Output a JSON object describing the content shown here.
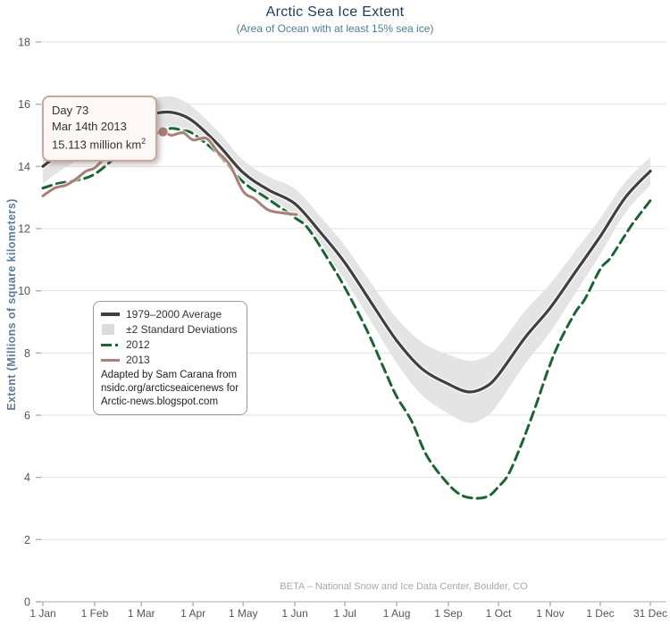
{
  "header": {
    "title": "Arctic Sea Ice Extent",
    "subtitle": "(Area of Ocean with at least 15% sea ice)"
  },
  "y_axis_title": "Extent (Millions of square kilometers)",
  "footer_note": "BETA – National Snow and Ice Data Center, Boulder, CO",
  "tooltip": {
    "day_label": "Day 73",
    "date_label": "Mar 14th 2013",
    "value_text": "15.113 million km",
    "value_sup": "2"
  },
  "legend": {
    "items": [
      {
        "label": "1979–2000 Average",
        "type": "solid-line",
        "color": "#3f3f3f"
      },
      {
        "label": "±2 Standard Deviations",
        "type": "band",
        "color": "#e3e3e3"
      },
      {
        "label": "2012",
        "type": "dash-dot-line",
        "color": "#1b6433"
      },
      {
        "label": "2013",
        "type": "solid-line",
        "color": "#a97f77"
      }
    ],
    "attribution": [
      "Adapted by Sam Carana from",
      "nsidc.org/arcticseaicenews for",
      "Arctic-news.blogspot.com"
    ]
  },
  "colors": {
    "title": "#1c3c5e",
    "subtitle": "#4d7f90",
    "y_axis_title": "#5b7b9d",
    "grid": "#e2e2e2",
    "axis_line": "#bdbdbd",
    "tick_text": "#555555",
    "band": "#e4e4e4",
    "average_line": "#3f3f3f",
    "line_2012": "#1b6433",
    "line_2013": "#a97f77",
    "tooltip_border": "#c9a69e",
    "tooltip_bg": "#fdf7f6"
  },
  "chart_data": {
    "type": "line",
    "title": "Arctic Sea Ice Extent",
    "subtitle": "(Area of Ocean with at least 15% sea ice)",
    "xlabel": "",
    "ylabel": "Extent (Millions of square kilometers)",
    "ylim": [
      0,
      18
    ],
    "y_ticks": [
      0,
      2,
      4,
      6,
      8,
      10,
      12,
      14,
      16,
      18
    ],
    "x_ticks": {
      "days": [
        1,
        32,
        60,
        91,
        121,
        152,
        182,
        213,
        244,
        274,
        305,
        335,
        365
      ],
      "labels": [
        "1 Jan",
        "1 Feb",
        "1 Mar",
        "1 Apr",
        "1 May",
        "1 Jun",
        "1 Jul",
        "1 Aug",
        "1 Sep",
        "1 Oct",
        "1 Nov",
        "1 Dec",
        "31 Dec"
      ]
    },
    "x_range_days": [
      1,
      365
    ],
    "grid": "horizontal",
    "legend_position": "inside-left",
    "band": {
      "name": "±2 Standard Deviations",
      "color": "#e4e4e4",
      "basis": "1979-2000 Average plus/minus offset listed as third element of each average point"
    },
    "series": [
      {
        "name": "1979–2000 Average",
        "color": "#3f3f3f",
        "style": "solid",
        "width": 3.2,
        "points_day_value_sd": [
          [
            1,
            14.0,
            0.55
          ],
          [
            14,
            14.5,
            0.55
          ],
          [
            32,
            15.0,
            0.52
          ],
          [
            46,
            15.3,
            0.5
          ],
          [
            60,
            15.55,
            0.5
          ],
          [
            70,
            15.72,
            0.5
          ],
          [
            80,
            15.72,
            0.5
          ],
          [
            91,
            15.45,
            0.45
          ],
          [
            106,
            14.7,
            0.42
          ],
          [
            121,
            13.8,
            0.4
          ],
          [
            136,
            13.25,
            0.42
          ],
          [
            152,
            12.8,
            0.48
          ],
          [
            167,
            11.9,
            0.5
          ],
          [
            182,
            10.9,
            0.55
          ],
          [
            198,
            9.6,
            0.62
          ],
          [
            213,
            8.4,
            0.72
          ],
          [
            228,
            7.5,
            0.85
          ],
          [
            244,
            7.0,
            0.95
          ],
          [
            256,
            6.75,
            1.0
          ],
          [
            266,
            6.9,
            0.97
          ],
          [
            274,
            7.3,
            0.92
          ],
          [
            290,
            8.5,
            0.85
          ],
          [
            305,
            9.45,
            0.78
          ],
          [
            320,
            10.6,
            0.68
          ],
          [
            335,
            11.75,
            0.58
          ],
          [
            350,
            13.0,
            0.5
          ],
          [
            365,
            13.85,
            0.45
          ]
        ]
      },
      {
        "name": "2012",
        "color": "#1b6433",
        "style": "dashed",
        "width": 3,
        "dash": "10 6",
        "points_day_value": [
          [
            1,
            13.3
          ],
          [
            10,
            13.45
          ],
          [
            21,
            13.55
          ],
          [
            32,
            13.75
          ],
          [
            46,
            14.35
          ],
          [
            60,
            14.9
          ],
          [
            70,
            15.1
          ],
          [
            78,
            15.22
          ],
          [
            85,
            15.15
          ],
          [
            91,
            15.05
          ],
          [
            106,
            14.4
          ],
          [
            121,
            13.5
          ],
          [
            136,
            12.95
          ],
          [
            152,
            12.35
          ],
          [
            160,
            12.0
          ],
          [
            172,
            11.0
          ],
          [
            182,
            10.1
          ],
          [
            195,
            8.75
          ],
          [
            207,
            7.3
          ],
          [
            213,
            6.6
          ],
          [
            222,
            5.8
          ],
          [
            231,
            4.7
          ],
          [
            242,
            3.9
          ],
          [
            251,
            3.45
          ],
          [
            260,
            3.33
          ],
          [
            268,
            3.4
          ],
          [
            274,
            3.7
          ],
          [
            280,
            4.1
          ],
          [
            288,
            5.1
          ],
          [
            296,
            6.25
          ],
          [
            304,
            7.5
          ],
          [
            311,
            8.4
          ],
          [
            320,
            9.3
          ],
          [
            326,
            9.75
          ],
          [
            335,
            10.7
          ],
          [
            341,
            11.05
          ],
          [
            350,
            11.8
          ],
          [
            355,
            12.2
          ],
          [
            365,
            12.9
          ]
        ]
      },
      {
        "name": "2013",
        "color": "#a97f77",
        "style": "solid",
        "width": 3,
        "points_day_value": [
          [
            1,
            13.05
          ],
          [
            8,
            13.3
          ],
          [
            15,
            13.4
          ],
          [
            21,
            13.6
          ],
          [
            27,
            13.85
          ],
          [
            32,
            13.95
          ],
          [
            39,
            14.3
          ],
          [
            46,
            14.45
          ],
          [
            53,
            14.6
          ],
          [
            60,
            14.85
          ],
          [
            66,
            15.0
          ],
          [
            73,
            15.113
          ],
          [
            78,
            15.0
          ],
          [
            85,
            15.08
          ],
          [
            91,
            14.85
          ],
          [
            99,
            14.9
          ],
          [
            106,
            14.45
          ],
          [
            113,
            14.05
          ],
          [
            121,
            13.2
          ],
          [
            128,
            12.95
          ],
          [
            136,
            12.6
          ],
          [
            145,
            12.5
          ],
          [
            153,
            12.45
          ]
        ]
      }
    ],
    "highlight_point": {
      "series": "2013",
      "day": 73,
      "value": 15.113,
      "date": "Mar 14th 2013",
      "marker_color": "#a97f77"
    },
    "footnote": "BETA – National Snow and Ice Data Center, Boulder, CO"
  }
}
